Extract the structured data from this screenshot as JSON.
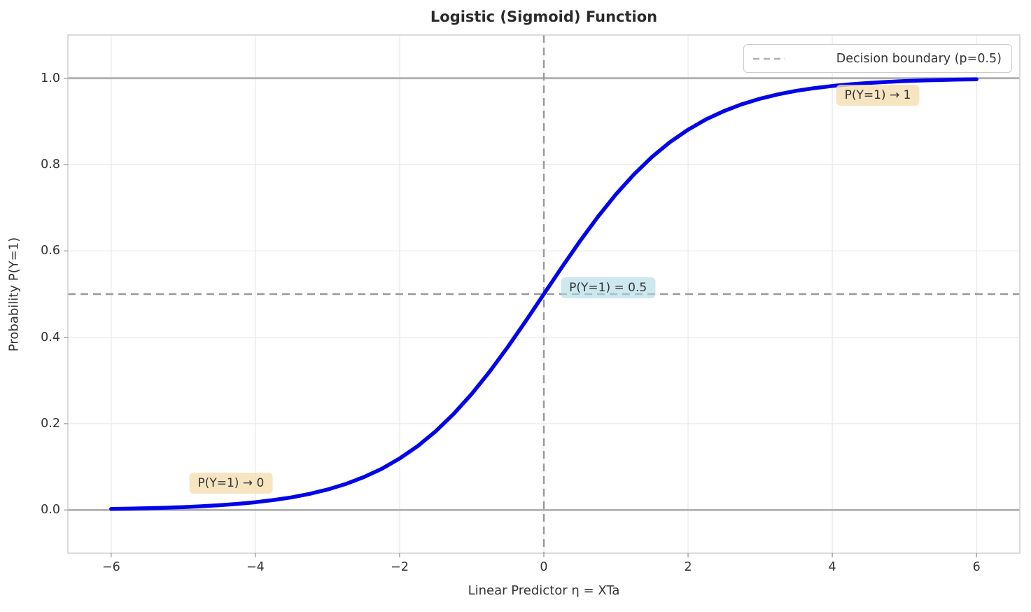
{
  "title": "Logistic (Sigmoid) Function",
  "legend": {
    "items": [
      {
        "label": "Decision boundary (p=0.5)",
        "line_style": "dashed",
        "line_color": "#b0b0b0"
      }
    ],
    "position": "upper right"
  },
  "colors": {
    "curve": "#0404e8",
    "dashed_reference": "#999999",
    "asymptote": "#b0b0b0",
    "grid": "#e8e8e8",
    "spine": "#cccccc",
    "tick": "#999999",
    "text": "#333333",
    "title_text": "#2b2b2b",
    "annotation_wheat": "rgba(245,222,179,0.8)",
    "annotation_lightblue": "rgba(173,216,230,0.6)"
  },
  "chart_data": {
    "type": "line",
    "title": "Logistic (Sigmoid) Function",
    "xlabel": "Linear Predictor η = XTa",
    "ylabel": "Probability P(Y=1)",
    "xlim": [
      -6.6,
      6.6
    ],
    "ylim": [
      -0.1,
      1.1
    ],
    "grid": true,
    "legend_position": "upper right",
    "x_tick_values": [
      -6,
      -4,
      -2,
      0,
      2,
      4,
      6
    ],
    "x_tick_labels": [
      "−6",
      "−4",
      "−2",
      "0",
      "2",
      "4",
      "6"
    ],
    "y_tick_values": [
      0.0,
      0.2,
      0.4,
      0.6,
      0.8,
      1.0
    ],
    "y_tick_labels": [
      "0.0",
      "0.2",
      "0.4",
      "0.6",
      "0.8",
      "1.0"
    ],
    "series": [
      {
        "name": "sigmoid-curve",
        "color": "#0404e8",
        "x": [
          -6,
          -5.75,
          -5.5,
          -5.25,
          -5,
          -4.75,
          -4.5,
          -4.25,
          -4,
          -3.75,
          -3.5,
          -3.25,
          -3,
          -2.75,
          -2.5,
          -2.25,
          -2,
          -1.75,
          -1.5,
          -1.25,
          -1,
          -0.75,
          -0.5,
          -0.25,
          0,
          0.25,
          0.5,
          0.75,
          1,
          1.25,
          1.5,
          1.75,
          2,
          2.25,
          2.5,
          2.75,
          3,
          3.25,
          3.5,
          3.75,
          4,
          4.25,
          4.5,
          4.75,
          5,
          5.25,
          5.5,
          5.75,
          6
        ],
        "y": [
          0.0025,
          0.0032,
          0.0041,
          0.0052,
          0.0067,
          0.0086,
          0.011,
          0.0141,
          0.018,
          0.023,
          0.0293,
          0.0373,
          0.0474,
          0.0601,
          0.0759,
          0.0953,
          0.1192,
          0.148,
          0.1824,
          0.2227,
          0.2689,
          0.3208,
          0.3775,
          0.4378,
          0.5,
          0.5622,
          0.6225,
          0.6792,
          0.7311,
          0.7773,
          0.8176,
          0.852,
          0.8808,
          0.9047,
          0.9241,
          0.9399,
          0.9526,
          0.9627,
          0.9707,
          0.977,
          0.982,
          0.9859,
          0.989,
          0.9914,
          0.9933,
          0.9948,
          0.9959,
          0.9968,
          0.9975
        ]
      }
    ],
    "reference_lines": [
      {
        "name": "decision-boundary-hline",
        "orientation": "horizontal",
        "value": 0.5,
        "style": "dashed",
        "color": "#999999"
      },
      {
        "name": "decision-boundary-vline",
        "orientation": "vertical",
        "value": 0,
        "style": "dashed",
        "color": "#999999"
      },
      {
        "name": "lower-asymptote",
        "orientation": "horizontal",
        "value": 0.0,
        "style": "solid",
        "color": "#b0b0b0"
      },
      {
        "name": "upper-asymptote",
        "orientation": "horizontal",
        "value": 1.0,
        "style": "solid",
        "color": "#b0b0b0"
      }
    ],
    "annotations": [
      {
        "text": "P(Y=1) → 0",
        "x": -4.34,
        "y": 0.062,
        "bg": "rgba(245,222,179,0.8)"
      },
      {
        "text": "P(Y=1) = 0.5",
        "x": 0.89,
        "y": 0.515,
        "bg": "rgba(173,216,230,0.6)"
      },
      {
        "text": "P(Y=1) → 1",
        "x": 4.63,
        "y": 0.96,
        "bg": "rgba(245,222,179,0.8)"
      }
    ]
  }
}
